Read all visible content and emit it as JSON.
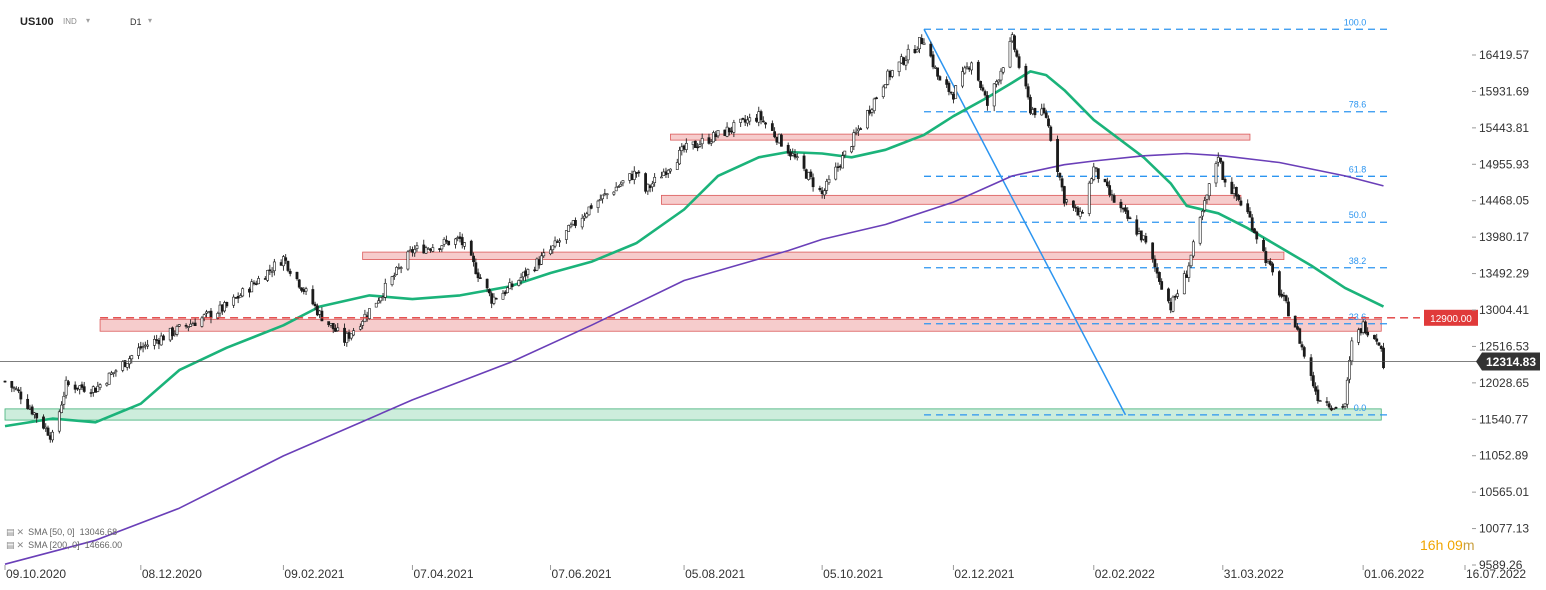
{
  "header": {
    "symbol": "US100",
    "type": "IND",
    "timeframe": "D1"
  },
  "legend": [
    {
      "name": "SMA [50, 0]",
      "value": "13046.68",
      "color": "#1bb37a"
    },
    {
      "name": "SMA [200, 0]",
      "value": "14666.00",
      "color": "#6a3fb8"
    }
  ],
  "timer": {
    "hours": "16",
    "h_unit": "h",
    "minutes": "09",
    "m_unit": "m"
  },
  "chart_data": {
    "type": "candlestick",
    "instrument": "US100",
    "timeframe": "D1",
    "price_axis_ticks": [
      "16419.57",
      "15931.69",
      "15443.81",
      "14955.93",
      "14468.05",
      "13980.17",
      "13492.29",
      "13004.41",
      "12516.53",
      "12028.65",
      "11540.77",
      "11052.89",
      "10565.01",
      "10077.13",
      "9589.26"
    ],
    "date_axis_ticks": [
      "09.10.2020",
      "08.12.2020",
      "09.02.2021",
      "07.04.2021",
      "07.06.2021",
      "05.08.2021",
      "05.10.2021",
      "02.12.2021",
      "02.02.2022",
      "31.03.2022",
      "01.06.2022",
      "16.07.2022"
    ],
    "ylim": [
      9589.26,
      16800
    ],
    "current_price": "12314.83",
    "current_price_color": "#333333",
    "alert_level": {
      "value": 12900,
      "label": "12900.00",
      "color": "#e03a3a"
    },
    "price_path": [
      [
        "09.10.2020",
        12050
      ],
      [
        "15.10.2020",
        11900
      ],
      [
        "30.10.2020",
        11300
      ],
      [
        "05.11.2020",
        12000
      ],
      [
        "18.11.2020",
        11950
      ],
      [
        "08.12.2020",
        12500
      ],
      [
        "25.12.2020",
        12750
      ],
      [
        "15.01.2021",
        13050
      ],
      [
        "09.02.2021",
        13700
      ],
      [
        "25.02.2021",
        12950
      ],
      [
        "08.03.2021",
        12600
      ],
      [
        "19.03.2021",
        13000
      ],
      [
        "07.04.2021",
        13800
      ],
      [
        "28.04.2021",
        13950
      ],
      [
        "12.05.2021",
        13150
      ],
      [
        "20.05.2021",
        13300
      ],
      [
        "07.06.2021",
        13800
      ],
      [
        "25.06.2021",
        14400
      ],
      [
        "15.07.2021",
        14850
      ],
      [
        "19.07.2021",
        14600
      ],
      [
        "05.08.2021",
        15150
      ],
      [
        "20.08.2021",
        15350
      ],
      [
        "07.09.2021",
        15600
      ],
      [
        "20.09.2021",
        15150
      ],
      [
        "05.10.2021",
        14550
      ],
      [
        "18.10.2021",
        15250
      ],
      [
        "02.11.2021",
        16100
      ],
      [
        "19.11.2021",
        16650
      ],
      [
        "26.11.2021",
        16050
      ],
      [
        "02.12.2021",
        15900
      ],
      [
        "10.12.2021",
        16350
      ],
      [
        "17.12.2021",
        15750
      ],
      [
        "28.12.2021",
        16620
      ],
      [
        "05.01.2022",
        15700
      ],
      [
        "12.01.2022",
        15600
      ],
      [
        "20.01.2022",
        14500
      ],
      [
        "27.01.2022",
        14250
      ],
      [
        "02.02.2022",
        14900
      ],
      [
        "10.02.2022",
        14500
      ],
      [
        "24.02.2022",
        13950
      ],
      [
        "08.03.2022",
        13050
      ],
      [
        "15.03.2022",
        13500
      ],
      [
        "29.03.2022",
        15100
      ],
      [
        "31.03.2022",
        14800
      ],
      [
        "11.04.2022",
        14300
      ],
      [
        "25.04.2022",
        13250
      ],
      [
        "02.05.2022",
        12800
      ],
      [
        "09.05.2022",
        12100
      ],
      [
        "12.05.2022",
        11850
      ],
      [
        "20.05.2022",
        11700
      ],
      [
        "24.05.2022",
        11750
      ],
      [
        "27.05.2022",
        12550
      ],
      [
        "01.06.2022",
        12800
      ],
      [
        "08.06.2022",
        12600
      ],
      [
        "10.06.2022",
        12300
      ]
    ],
    "series": [
      {
        "name": "SMA [50, 0]",
        "color": "#1bb37a",
        "points": [
          [
            "09.10.2020",
            11450
          ],
          [
            "30.10.2020",
            11550
          ],
          [
            "18.11.2020",
            11500
          ],
          [
            "08.12.2020",
            11750
          ],
          [
            "25.12.2020",
            12200
          ],
          [
            "15.01.2021",
            12500
          ],
          [
            "09.02.2021",
            12800
          ],
          [
            "25.02.2021",
            13050
          ],
          [
            "19.03.2021",
            13200
          ],
          [
            "07.04.2021",
            13150
          ],
          [
            "28.04.2021",
            13200
          ],
          [
            "20.05.2021",
            13320
          ],
          [
            "07.06.2021",
            13500
          ],
          [
            "25.06.2021",
            13650
          ],
          [
            "15.07.2021",
            13900
          ],
          [
            "05.08.2021",
            14350
          ],
          [
            "20.08.2021",
            14800
          ],
          [
            "07.09.2021",
            15050
          ],
          [
            "20.09.2021",
            15120
          ],
          [
            "05.10.2021",
            15100
          ],
          [
            "18.10.2021",
            15050
          ],
          [
            "02.11.2021",
            15150
          ],
          [
            "19.11.2021",
            15350
          ],
          [
            "02.12.2021",
            15600
          ],
          [
            "17.12.2021",
            15850
          ],
          [
            "28.12.2021",
            16050
          ],
          [
            "05.01.2022",
            16200
          ],
          [
            "12.01.2022",
            16150
          ],
          [
            "20.01.2022",
            15950
          ],
          [
            "02.02.2022",
            15550
          ],
          [
            "24.02.2022",
            15050
          ],
          [
            "08.03.2022",
            14700
          ],
          [
            "15.03.2022",
            14400
          ],
          [
            "29.03.2022",
            14300
          ],
          [
            "11.04.2022",
            14100
          ],
          [
            "25.04.2022",
            13850
          ],
          [
            "09.05.2022",
            13600
          ],
          [
            "24.05.2022",
            13300
          ],
          [
            "10.06.2022",
            13050
          ]
        ]
      },
      {
        "name": "SMA [200, 0]",
        "color": "#6a3fb8",
        "points": [
          [
            "09.10.2020",
            9600
          ],
          [
            "18.11.2020",
            9920
          ],
          [
            "25.12.2020",
            10350
          ],
          [
            "09.02.2021",
            11050
          ],
          [
            "19.03.2021",
            11550
          ],
          [
            "07.04.2021",
            11800
          ],
          [
            "20.05.2021",
            12300
          ],
          [
            "25.06.2021",
            12800
          ],
          [
            "05.08.2021",
            13400
          ],
          [
            "20.09.2021",
            13800
          ],
          [
            "05.10.2021",
            13950
          ],
          [
            "02.11.2021",
            14150
          ],
          [
            "02.12.2021",
            14450
          ],
          [
            "28.12.2021",
            14800
          ],
          [
            "20.01.2022",
            14950
          ],
          [
            "02.02.2022",
            15000
          ],
          [
            "24.02.2022",
            15070
          ],
          [
            "15.03.2022",
            15100
          ],
          [
            "31.03.2022",
            15070
          ],
          [
            "25.04.2022",
            14980
          ],
          [
            "24.05.2022",
            14800
          ],
          [
            "10.06.2022",
            14666
          ]
        ]
      }
    ],
    "zones": [
      {
        "type": "resistance",
        "color": "#f6c7c7",
        "border": "#d84848",
        "from": "20.11.2020",
        "to": "09.06.2022",
        "low": 12720,
        "high": 12880
      },
      {
        "type": "resistance",
        "color": "#f6c7c7",
        "border": "#d84848",
        "from": "16.03.2021",
        "to": "27.04.2022",
        "low": 13680,
        "high": 13780
      },
      {
        "type": "resistance",
        "color": "#f6c7c7",
        "border": "#d84848",
        "from": "26.07.2021",
        "to": "08.04.2022",
        "low": 14420,
        "high": 14540
      },
      {
        "type": "resistance",
        "color": "#f6c7c7",
        "border": "#d84848",
        "from": "30.07.2021",
        "to": "12.04.2022",
        "low": 15280,
        "high": 15360
      },
      {
        "type": "support",
        "color": "#c8ecd9",
        "border": "#2aa868",
        "from": "09.10.2020",
        "to": "09.06.2022",
        "low": 11530,
        "high": 11680
      }
    ],
    "fibonacci": {
      "color": "#2c95f0",
      "from": "19.11.2021",
      "to": "13.06.2022",
      "levels": [
        {
          "label": "100.0",
          "value": 16764
        },
        {
          "label": "78.6",
          "value": 15660
        },
        {
          "label": "61.8",
          "value": 14795
        },
        {
          "label": "50.0",
          "value": 14180
        },
        {
          "label": "38.2",
          "value": 13570
        },
        {
          "label": "23.6",
          "value": 12820
        },
        {
          "label": "0.0",
          "value": 11600
        }
      ],
      "trendline": [
        [
          "19.11.2021",
          16764
        ],
        [
          "16.02.2022",
          11600
        ]
      ]
    }
  }
}
